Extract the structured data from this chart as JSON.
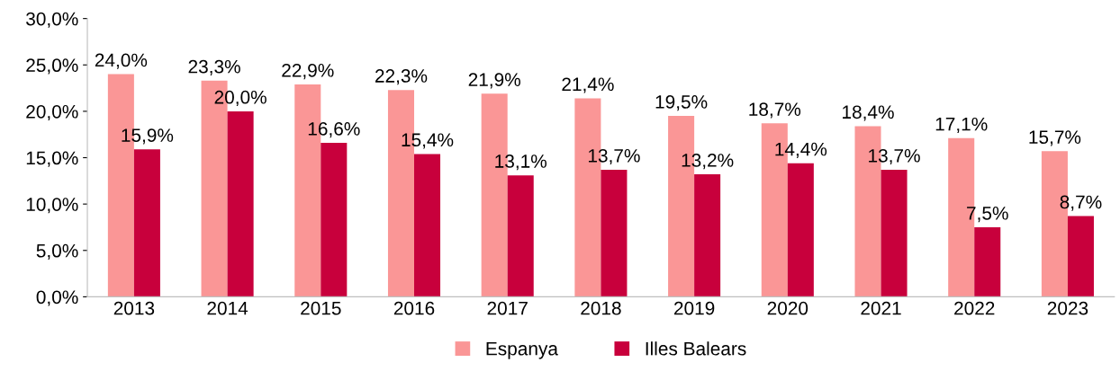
{
  "chart_data": {
    "type": "bar",
    "categories": [
      "2013",
      "2014",
      "2015",
      "2016",
      "2017",
      "2018",
      "2019",
      "2020",
      "2021",
      "2022",
      "2023"
    ],
    "series": [
      {
        "name": "Espanya",
        "color": "#fa9696",
        "values": [
          24.0,
          23.3,
          22.9,
          22.3,
          21.9,
          21.4,
          19.5,
          18.7,
          18.4,
          17.1,
          15.7
        ],
        "value_labels": [
          "24,0%",
          "23,3%",
          "22,9%",
          "22,3%",
          "21,9%",
          "21,4%",
          "19,5%",
          "18,7%",
          "18,4%",
          "17,1%",
          "15,7%"
        ]
      },
      {
        "name": "Illes Balears",
        "color": "#c8003c",
        "values": [
          15.9,
          20.0,
          16.6,
          15.4,
          13.1,
          13.7,
          13.2,
          14.4,
          13.7,
          7.5,
          8.7
        ],
        "value_labels": [
          "15,9%",
          "20,0%",
          "16,6%",
          "15,4%",
          "13,1%",
          "13,7%",
          "13,2%",
          "14,4%",
          "13,7%",
          "7,5%",
          "8,7%"
        ]
      }
    ],
    "ylim": [
      0,
      30
    ],
    "yticks": [
      {
        "value": 0,
        "label": "0,0%"
      },
      {
        "value": 5,
        "label": "5,0%"
      },
      {
        "value": 10,
        "label": "10,0%"
      },
      {
        "value": 15,
        "label": "15,0%"
      },
      {
        "value": 20,
        "label": "20,0%"
      },
      {
        "value": 25,
        "label": "25,0%"
      },
      {
        "value": 30,
        "label": "30,0%"
      }
    ],
    "grid": false,
    "legend": "bottom"
  }
}
